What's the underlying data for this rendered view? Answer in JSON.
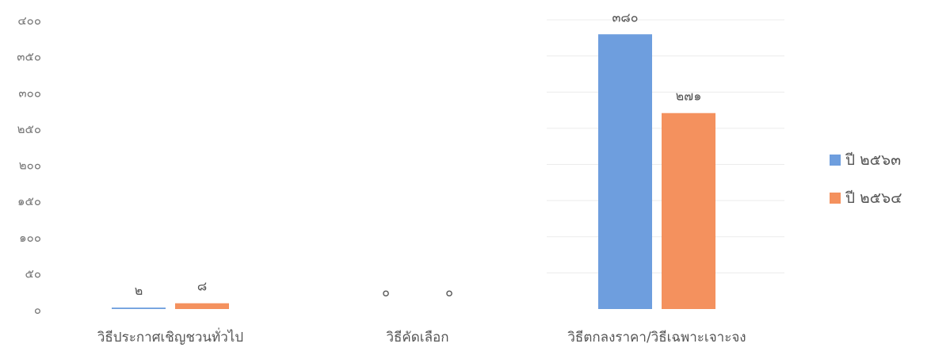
{
  "chart_data": {
    "type": "bar",
    "title": "",
    "xlabel": "",
    "ylabel": "",
    "categories": [
      "วิธีประกาศเชิญชวนทั่วไป",
      "วิธีคัดเลือก",
      "วิธีตกลงราคา/วิธีเฉพาะเจาะจง"
    ],
    "series": [
      {
        "name": "ปี ๒๕๖๓",
        "values": [
          2,
          0,
          380
        ],
        "value_labels": [
          "๒",
          "๐",
          "๓๘๐"
        ],
        "color": "#6e9ede"
      },
      {
        "name": "ปี ๒๕๖๔",
        "values": [
          8,
          0,
          271
        ],
        "value_labels": [
          "๘",
          "๐",
          "๒๗๑"
        ],
        "color": "#f4915e"
      }
    ],
    "ylim": [
      0,
      400
    ],
    "y_ticks": [
      0,
      50,
      100,
      150,
      200,
      250,
      300,
      350,
      400
    ],
    "y_tick_labels": [
      "๐",
      "๕๐",
      "๑๐๐",
      "๑๕๐",
      "๒๐๐",
      "๒๕๐",
      "๓๐๐",
      "๓๕๐",
      "๔๐๐"
    ],
    "grid": true,
    "legend_position": "right"
  }
}
